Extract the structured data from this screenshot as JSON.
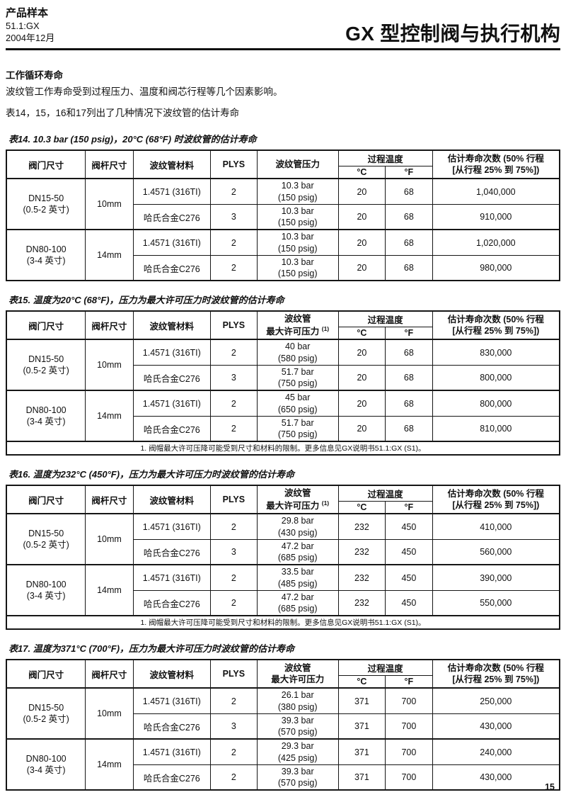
{
  "page": {
    "number": "15"
  },
  "masthead": {
    "doc_type": "产品样本",
    "doc_code": "51.1:GX",
    "doc_date": "2004年12月",
    "product_title": "GX 型控制阀与执行机构"
  },
  "intro": {
    "heading": "工作循环寿命",
    "line1": "波纹管工作寿命受到过程压力、温度和阀芯行程等几个因素影响。",
    "line2": "表14，15，16和17列出了几种情况下波纹管的估计寿命"
  },
  "table_headers": {
    "valve_size": "阀门尺寸",
    "stem_size": "阀杆尺寸",
    "bellows_material": "波纹管材料",
    "plys": "PLYS",
    "process_temp": "过程温度",
    "temp_c": "°C",
    "temp_f": "°F",
    "life_line1": "估计寿命次数 (50% 行程",
    "life_line2": "[从行程 25% 到 75%])"
  },
  "tables": [
    {
      "title": "表14. 10.3 bar (150 psig)，20°C (68°F) 时波纹管的估计寿命",
      "pressure_h1": "波纹管压力",
      "pressure_h2": "",
      "pressure_sup": "",
      "footnote": "",
      "groups": [
        {
          "valve_size_1": "DN15-50",
          "valve_size_2": "(0.5-2 英寸)",
          "stem_size": "10mm",
          "rows": [
            {
              "material": "1.4571 (316TI)",
              "plys": "2",
              "pressure_1": "10.3 bar",
              "pressure_2": "(150 psig)",
              "temp_c": "20",
              "temp_f": "68",
              "cycles": "1,040,000"
            },
            {
              "material": "哈氏合金C276",
              "plys": "3",
              "pressure_1": "10.3 bar",
              "pressure_2": "(150 psig)",
              "temp_c": "20",
              "temp_f": "68",
              "cycles": "910,000"
            }
          ]
        },
        {
          "valve_size_1": "DN80-100",
          "valve_size_2": "(3-4 英寸)",
          "stem_size": "14mm",
          "rows": [
            {
              "material": "1.4571 (316TI)",
              "plys": "2",
              "pressure_1": "10.3 bar",
              "pressure_2": "(150 psig)",
              "temp_c": "20",
              "temp_f": "68",
              "cycles": "1,020,000"
            },
            {
              "material": "哈氏合金C276",
              "plys": "2",
              "pressure_1": "10.3 bar",
              "pressure_2": "(150 psig)",
              "temp_c": "20",
              "temp_f": "68",
              "cycles": "980,000"
            }
          ]
        }
      ]
    },
    {
      "title": "表15. 温度为20°C (68°F)，压力为最大许可压力时波纹管的估计寿命",
      "pressure_h1": "波纹管",
      "pressure_h2": "最大许可压力",
      "pressure_sup": "(1)",
      "footnote": "1. 阀帽最大许可压降可能受到尺寸和材料的限制。更多信息见GX说明书51.1:GX (S1)。",
      "groups": [
        {
          "valve_size_1": "DN15-50",
          "valve_size_2": "(0.5-2 英寸)",
          "stem_size": "10mm",
          "rows": [
            {
              "material": "1.4571 (316TI)",
              "plys": "2",
              "pressure_1": "40 bar",
              "pressure_2": "(580 psig)",
              "temp_c": "20",
              "temp_f": "68",
              "cycles": "830,000"
            },
            {
              "material": "哈氏合金C276",
              "plys": "3",
              "pressure_1": "51.7 bar",
              "pressure_2": "(750 psig)",
              "temp_c": "20",
              "temp_f": "68",
              "cycles": "800,000"
            }
          ]
        },
        {
          "valve_size_1": "DN80-100",
          "valve_size_2": "(3-4 英寸)",
          "stem_size": "14mm",
          "rows": [
            {
              "material": "1.4571 (316TI)",
              "plys": "2",
              "pressure_1": "45 bar",
              "pressure_2": "(650 psig)",
              "temp_c": "20",
              "temp_f": "68",
              "cycles": "800,000"
            },
            {
              "material": "哈氏合金C276",
              "plys": "2",
              "pressure_1": "51.7 bar",
              "pressure_2": "(750 psig)",
              "temp_c": "20",
              "temp_f": "68",
              "cycles": "810,000"
            }
          ]
        }
      ]
    },
    {
      "title": "表16. 温度为232°C (450°F)，压力为最大许可压力时波纹管的估计寿命",
      "pressure_h1": "波纹管",
      "pressure_h2": "最大许可压力",
      "pressure_sup": "(1)",
      "footnote": "1. 阀帽最大许可压降可能受到尺寸和材料的限制。更多信息见GX说明书51.1:GX (S1)。",
      "groups": [
        {
          "valve_size_1": "DN15-50",
          "valve_size_2": "(0.5-2 英寸)",
          "stem_size": "10mm",
          "rows": [
            {
              "material": "1.4571 (316TI)",
              "plys": "2",
              "pressure_1": "29.8 bar",
              "pressure_2": "(430 psig)",
              "temp_c": "232",
              "temp_f": "450",
              "cycles": "410,000"
            },
            {
              "material": "哈氏合金C276",
              "plys": "3",
              "pressure_1": "47.2 bar",
              "pressure_2": "(685 psig)",
              "temp_c": "232",
              "temp_f": "450",
              "cycles": "560,000"
            }
          ]
        },
        {
          "valve_size_1": "DN80-100",
          "valve_size_2": "(3-4 英寸)",
          "stem_size": "14mm",
          "rows": [
            {
              "material": "1.4571 (316TI)",
              "plys": "2",
              "pressure_1": "33.5 bar",
              "pressure_2": "(485 psig)",
              "temp_c": "232",
              "temp_f": "450",
              "cycles": "390,000"
            },
            {
              "material": "哈氏合金C276",
              "plys": "2",
              "pressure_1": "47.2 bar",
              "pressure_2": "(685 psig)",
              "temp_c": "232",
              "temp_f": "450",
              "cycles": "550,000"
            }
          ]
        }
      ]
    },
    {
      "title": "表17. 温度为371°C (700°F)，压力为最大许可压力时波纹管的估计寿命",
      "pressure_h1": "波纹管",
      "pressure_h2": "最大许可压力",
      "pressure_sup": "",
      "footnote": "",
      "groups": [
        {
          "valve_size_1": "DN15-50",
          "valve_size_2": "(0.5-2 英寸)",
          "stem_size": "10mm",
          "rows": [
            {
              "material": "1.4571 (316TI)",
              "plys": "2",
              "pressure_1": "26.1 bar",
              "pressure_2": "(380 psig)",
              "temp_c": "371",
              "temp_f": "700",
              "cycles": "250,000"
            },
            {
              "material": "哈氏合金C276",
              "plys": "3",
              "pressure_1": "39.3 bar",
              "pressure_2": "(570 psig)",
              "temp_c": "371",
              "temp_f": "700",
              "cycles": "430,000"
            }
          ]
        },
        {
          "valve_size_1": "DN80-100",
          "valve_size_2": "(3-4 英寸)",
          "stem_size": "14mm",
          "rows": [
            {
              "material": "1.4571 (316TI)",
              "plys": "2",
              "pressure_1": "29.3 bar",
              "pressure_2": "(425 psig)",
              "temp_c": "371",
              "temp_f": "700",
              "cycles": "240,000"
            },
            {
              "material": "哈氏合金C276",
              "plys": "2",
              "pressure_1": "39.3 bar",
              "pressure_2": "(570 psig)",
              "temp_c": "371",
              "temp_f": "700",
              "cycles": "430,000"
            }
          ]
        }
      ]
    }
  ]
}
